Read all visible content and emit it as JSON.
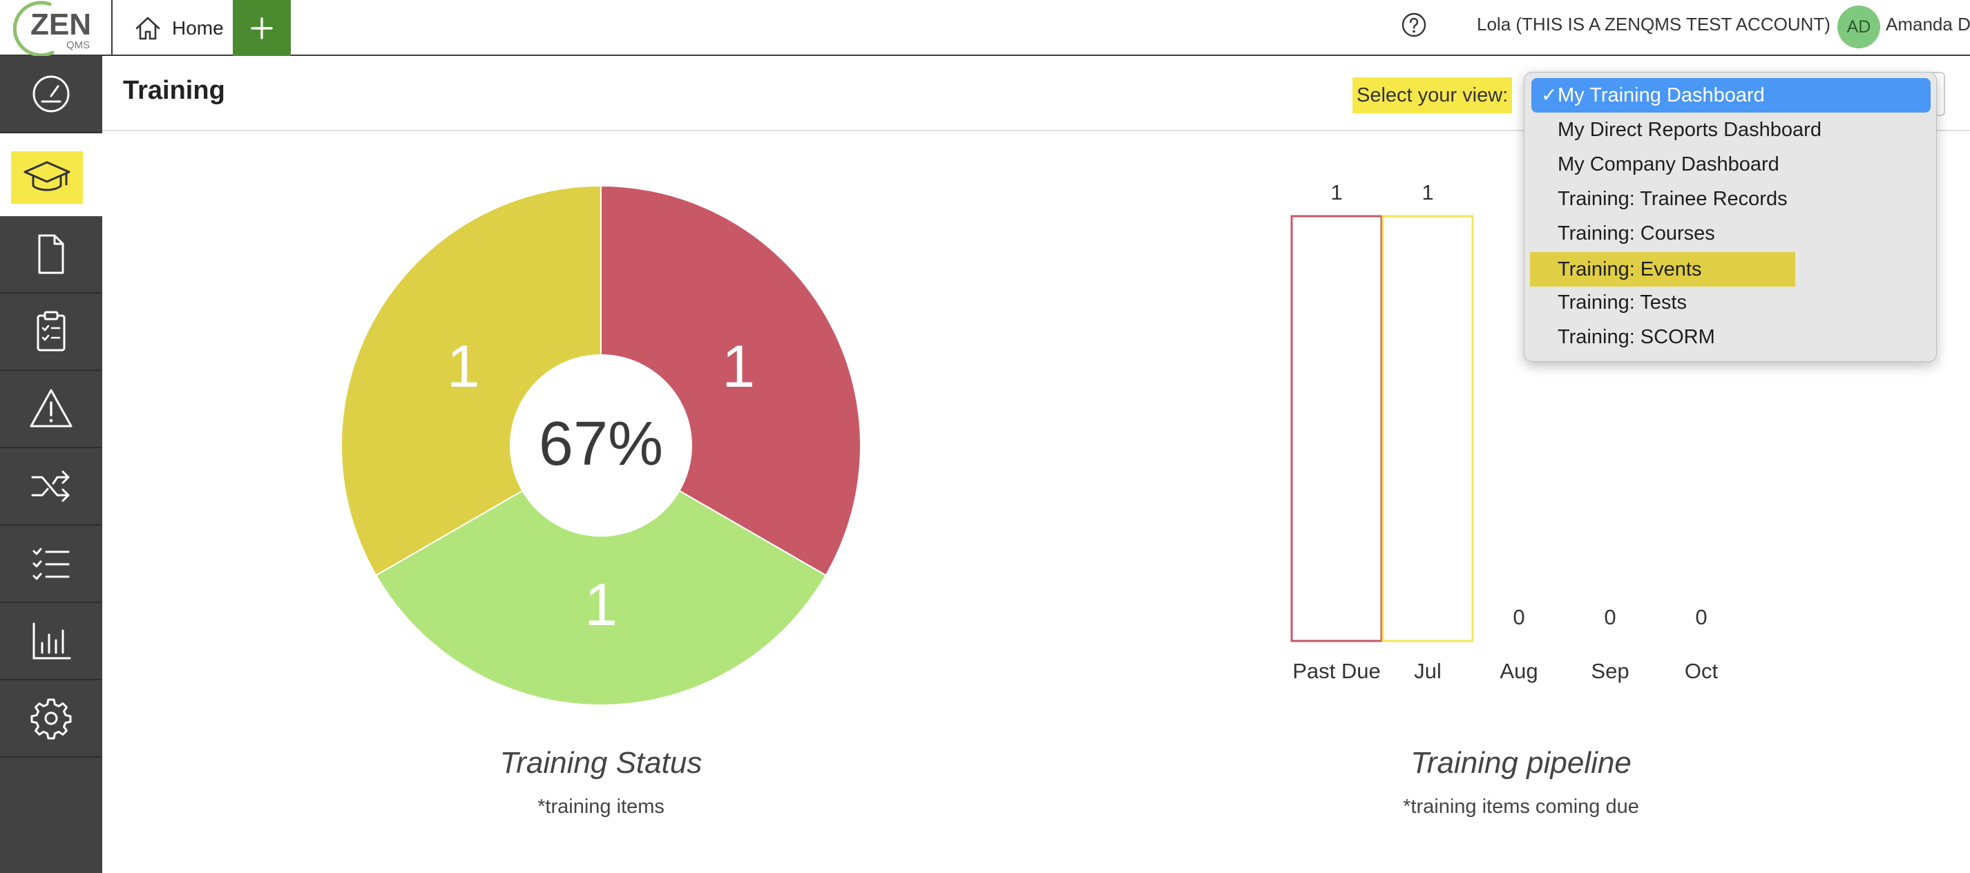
{
  "topbar": {
    "logo_text": "ZEN",
    "logo_subtext": "QMS",
    "home_label": "Home",
    "account_label": "Lola (THIS IS A ZENQMS TEST ACCOUNT)",
    "avatar_initials": "AD",
    "user_name": "Amanda D"
  },
  "sidebar": {
    "items": [
      {
        "icon": "dashboard-gauge-icon"
      },
      {
        "icon": "graduation-cap-icon",
        "active": true
      },
      {
        "icon": "document-icon"
      },
      {
        "icon": "clipboard-checklist-icon"
      },
      {
        "icon": "warning-triangle-icon"
      },
      {
        "icon": "shuffle-icon"
      },
      {
        "icon": "checklist-icon"
      },
      {
        "icon": "bar-chart-icon"
      },
      {
        "icon": "gear-icon"
      }
    ]
  },
  "page": {
    "title": "Training",
    "view_label": "Select your view:",
    "view_options": [
      "My Training Dashboard",
      "My Direct Reports Dashboard",
      "My Company Dashboard",
      "Training: Trainee Records",
      "Training: Courses",
      "Training: Events",
      "Training: Tests",
      "Training: SCORM"
    ],
    "selected_check": "✓",
    "selected_index": 0,
    "hovered_index": 5
  },
  "chart_data": [
    {
      "type": "pie",
      "title": "Training Status",
      "subtitle": "*training items",
      "center_label": "67%",
      "slices": [
        {
          "value": 1,
          "label": "1",
          "color": "#c85866"
        },
        {
          "value": 1,
          "label": "1",
          "color": "#b1e57b"
        },
        {
          "value": 1,
          "label": "1",
          "color": "#ddd046"
        }
      ]
    },
    {
      "type": "bar",
      "title": "Training pipeline",
      "subtitle": "*training items coming due",
      "categories": [
        "Past Due",
        "Jul",
        "Aug",
        "Sep",
        "Oct"
      ],
      "values": [
        1,
        1,
        0,
        0,
        0
      ],
      "data_labels": [
        "1",
        "1",
        "0",
        "0",
        "0"
      ],
      "colors": [
        "#c85866",
        "#f2e655",
        "#cccccc",
        "#cccccc",
        "#cccccc"
      ],
      "ylim": [
        0,
        1
      ]
    }
  ],
  "colors": {
    "accent_green": "#4b8a2e",
    "highlight_yellow": "#f7e84a",
    "select_blue": "#4a97f5",
    "sidebar_bg": "#424242"
  }
}
